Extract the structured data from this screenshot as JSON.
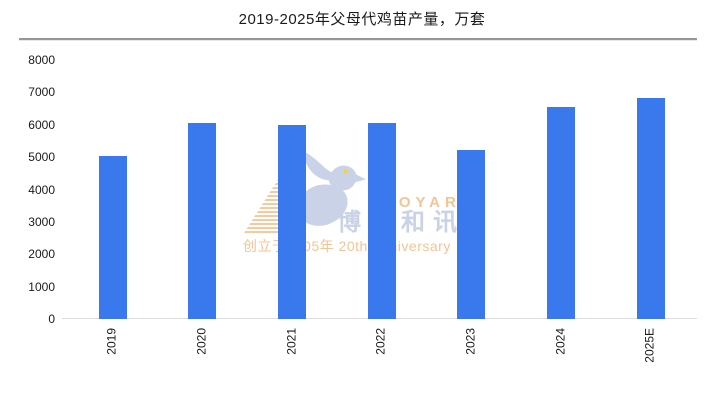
{
  "chart": {
    "title": "2019-2025年父母代鸡苗产量，万套"
  },
  "chart_data": {
    "type": "bar",
    "title": "2019-2025年父母代鸡苗产量，万套",
    "categories": [
      "2019",
      "2020",
      "2021",
      "2022",
      "2023",
      "2024",
      "2025E"
    ],
    "values": [
      5050,
      6050,
      5990,
      6040,
      5210,
      6550,
      6840
    ],
    "unit": "万套",
    "xlabel": "",
    "ylabel": "",
    "ylim": [
      0,
      8000
    ],
    "y_ticks": [
      0,
      1000,
      2000,
      3000,
      4000,
      5000,
      6000,
      7000,
      8000
    ],
    "grid": false,
    "legend": null,
    "bar_color": "#3a78ed"
  },
  "watermark": {
    "brand_en": "BOYAR",
    "brand_cn": "博亚和讯",
    "tagline": "创立于2005年 20th Anniversary",
    "orange": "#f6c392",
    "blue_gray": "#c9d2e7",
    "eye_yellow": "#f2d24b"
  }
}
